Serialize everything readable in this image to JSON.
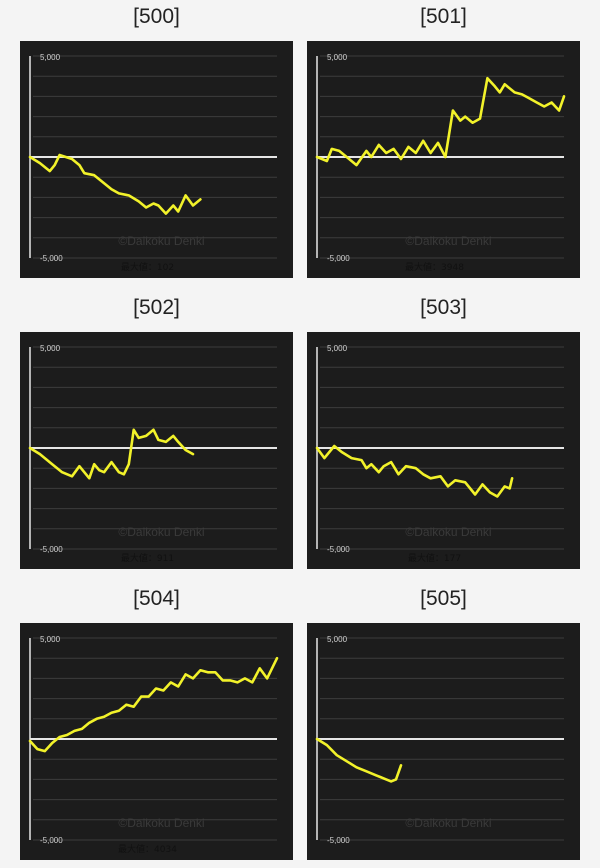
{
  "colors": {
    "page_background": "#f4f4f4",
    "chart_background": "#1c1c1c",
    "gridline": "#3d3d3d",
    "zero_line": "#e6e6e6",
    "series": "#f2f22a",
    "axis_text": "#d0d0d0",
    "watermark": "#3a3a3a"
  },
  "charts": [
    {
      "title": "[500]",
      "y_top_label": "5,000",
      "y_bottom_label": "-5,000",
      "watermark": "©Daikoku Denki",
      "max_label": "最大値：102"
    },
    {
      "title": "[501]",
      "y_top_label": "5,000",
      "y_bottom_label": "-5,000",
      "watermark": "©Daikoku Denki",
      "max_label": "最大値：3948"
    },
    {
      "title": "[502]",
      "y_top_label": "5,000",
      "y_bottom_label": "-5,000",
      "watermark": "©Daikoku Denki",
      "max_label": "最大値：911"
    },
    {
      "title": "[503]",
      "y_top_label": "5,000",
      "y_bottom_label": "-5,000",
      "watermark": "©Daikoku Denki",
      "max_label": "最大値：177"
    },
    {
      "title": "[504]",
      "y_top_label": "5,000",
      "y_bottom_label": "-5,000",
      "watermark": "©Daikoku Denki",
      "max_label": "最大値：4034"
    },
    {
      "title": "[505]",
      "y_top_label": "5,000",
      "y_bottom_label": "-5,000",
      "watermark": "©Daikoku Denki",
      "max_label": ""
    }
  ],
  "chart_data": [
    {
      "type": "line",
      "title": "[500]",
      "ylim": [
        -5000,
        5000
      ],
      "xlim": [
        0,
        1
      ],
      "grid": true,
      "series": [
        {
          "x": [
            0,
            0.04,
            0.08,
            0.1,
            0.12,
            0.17,
            0.2,
            0.22,
            0.26,
            0.3,
            0.33,
            0.36,
            0.4,
            0.44,
            0.47,
            0.5,
            0.52,
            0.55,
            0.58,
            0.6,
            0.63,
            0.66,
            0.69
          ],
          "y": [
            0,
            -300,
            -700,
            -400,
            100,
            -100,
            -400,
            -800,
            -900,
            -1300,
            -1600,
            -1800,
            -1900,
            -2200,
            -2500,
            -2300,
            -2400,
            -2800,
            -2400,
            -2700,
            -1900,
            -2400,
            -2100
          ]
        }
      ]
    },
    {
      "type": "line",
      "title": "[501]",
      "ylim": [
        -5000,
        5000
      ],
      "xlim": [
        0,
        1
      ],
      "grid": true,
      "series": [
        {
          "x": [
            0,
            0.04,
            0.06,
            0.09,
            0.13,
            0.16,
            0.2,
            0.22,
            0.25,
            0.28,
            0.31,
            0.34,
            0.37,
            0.4,
            0.43,
            0.46,
            0.49,
            0.52,
            0.55,
            0.58,
            0.6,
            0.63,
            0.66,
            0.69,
            0.72,
            0.74,
            0.76,
            0.8,
            0.83,
            0.86,
            0.89,
            0.92,
            0.95,
            0.98,
            1.0
          ],
          "y": [
            0,
            -200,
            400,
            300,
            -100,
            -400,
            300,
            0,
            600,
            200,
            400,
            -100,
            500,
            200,
            800,
            200,
            700,
            0,
            2300,
            1800,
            2000,
            1700,
            1900,
            3900,
            3500,
            3200,
            3600,
            3200,
            3100,
            2900,
            2700,
            2500,
            2700,
            2300,
            3000
          ]
        }
      ]
    },
    {
      "type": "line",
      "title": "[502]",
      "ylim": [
        -5000,
        5000
      ],
      "xlim": [
        0,
        1
      ],
      "grid": true,
      "series": [
        {
          "x": [
            0,
            0.04,
            0.09,
            0.13,
            0.17,
            0.2,
            0.24,
            0.26,
            0.28,
            0.3,
            0.33,
            0.36,
            0.38,
            0.4,
            0.42,
            0.44,
            0.47,
            0.5,
            0.52,
            0.55,
            0.58,
            0.6,
            0.63,
            0.66
          ],
          "y": [
            0,
            -300,
            -800,
            -1200,
            -1400,
            -900,
            -1500,
            -800,
            -1100,
            -1200,
            -700,
            -1200,
            -1300,
            -800,
            900,
            500,
            600,
            900,
            400,
            300,
            600,
            300,
            -100,
            -300
          ]
        }
      ]
    },
    {
      "type": "line",
      "title": "[503]",
      "ylim": [
        -5000,
        5000
      ],
      "xlim": [
        0,
        1
      ],
      "grid": true,
      "series": [
        {
          "x": [
            0,
            0.03,
            0.07,
            0.1,
            0.14,
            0.18,
            0.2,
            0.22,
            0.25,
            0.27,
            0.3,
            0.33,
            0.36,
            0.4,
            0.43,
            0.46,
            0.5,
            0.53,
            0.56,
            0.6,
            0.64,
            0.67,
            0.7,
            0.73,
            0.76,
            0.78,
            0.79
          ],
          "y": [
            0,
            -500,
            100,
            -200,
            -500,
            -600,
            -1000,
            -800,
            -1200,
            -900,
            -700,
            -1300,
            -900,
            -1000,
            -1300,
            -1500,
            -1400,
            -1900,
            -1600,
            -1700,
            -2300,
            -1800,
            -2200,
            -2400,
            -1900,
            -2000,
            -1500
          ]
        }
      ]
    },
    {
      "type": "line",
      "title": "[504]",
      "ylim": [
        -5000,
        5000
      ],
      "xlim": [
        0,
        1
      ],
      "grid": true,
      "series": [
        {
          "x": [
            0,
            0.03,
            0.06,
            0.09,
            0.12,
            0.15,
            0.18,
            0.21,
            0.24,
            0.27,
            0.3,
            0.33,
            0.36,
            0.39,
            0.42,
            0.45,
            0.48,
            0.51,
            0.54,
            0.57,
            0.6,
            0.63,
            0.66,
            0.69,
            0.72,
            0.75,
            0.78,
            0.81,
            0.84,
            0.87,
            0.9,
            0.93,
            0.96,
            1.0
          ],
          "y": [
            -100,
            -500,
            -600,
            -200,
            100,
            200,
            400,
            500,
            800,
            1000,
            1100,
            1300,
            1400,
            1700,
            1600,
            2100,
            2100,
            2500,
            2400,
            2800,
            2600,
            3200,
            3000,
            3400,
            3300,
            3300,
            2900,
            2900,
            2800,
            3000,
            2800,
            3500,
            3000,
            4000
          ]
        }
      ]
    },
    {
      "type": "line",
      "title": "[505]",
      "ylim": [
        -5000,
        5000
      ],
      "xlim": [
        0,
        1
      ],
      "grid": true,
      "series": [
        {
          "x": [
            0,
            0.04,
            0.08,
            0.12,
            0.16,
            0.2,
            0.24,
            0.28,
            0.3,
            0.32,
            0.34
          ],
          "y": [
            0,
            -300,
            -800,
            -1100,
            -1400,
            -1600,
            -1800,
            -2000,
            -2100,
            -2000,
            -1300
          ]
        }
      ]
    }
  ]
}
